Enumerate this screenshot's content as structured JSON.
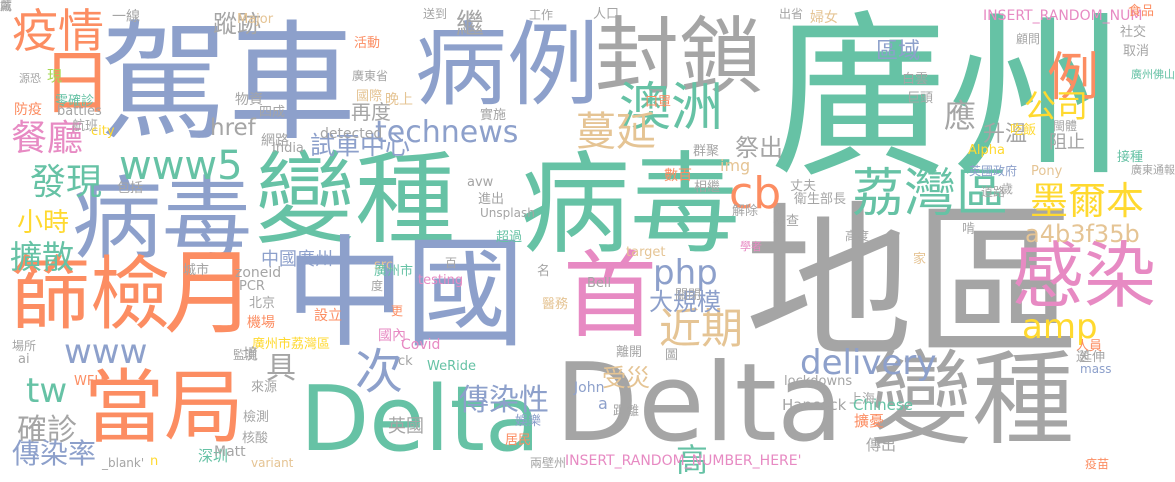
{
  "background": "#ffffff",
  "palette": {
    "gray": "#a5a5a5",
    "green": "#66c2a5",
    "orange": "#fc8d62",
    "blue": "#8da0cb",
    "pink": "#e78ac3",
    "lime": "#a6d854",
    "yellow": "#ffd92f",
    "tan": "#e5c494"
  },
  "words": [
    {
      "text": "廣州",
      "color": "green"
    },
    {
      "text": "駕車",
      "color": "blue"
    },
    {
      "text": "地區",
      "color": "gray"
    },
    {
      "text": "病毒",
      "color": "green"
    },
    {
      "text": "變種",
      "color": "green"
    },
    {
      "text": "變種",
      "color": "gray"
    },
    {
      "text": "Delta",
      "color": "gray"
    },
    {
      "text": "Delta",
      "color": "green"
    },
    {
      "text": "中國",
      "color": "blue"
    },
    {
      "text": "病例",
      "color": "blue"
    },
    {
      "text": "封鎖",
      "color": "gray"
    },
    {
      "text": "首",
      "color": "pink"
    },
    {
      "text": "病毒",
      "color": "blue"
    },
    {
      "text": "篩檢",
      "color": "orange"
    },
    {
      "text": "月",
      "color": "orange"
    },
    {
      "text": "當局",
      "color": "orange"
    },
    {
      "text": "感染",
      "color": "pink"
    },
    {
      "text": "日",
      "color": "orange"
    },
    {
      "text": "疫情",
      "color": "orange"
    },
    {
      "text": "荔灣區",
      "color": "green"
    },
    {
      "text": "墨爾本",
      "color": "yellow"
    },
    {
      "text": "澳洲",
      "color": "green"
    },
    {
      "text": "蔓延",
      "color": "tan"
    },
    {
      "text": "technews",
      "color": "blue"
    },
    {
      "text": "www5",
      "color": "green"
    },
    {
      "text": "www",
      "color": "blue"
    },
    {
      "text": "delivery",
      "color": "blue"
    },
    {
      "text": "cb",
      "color": "orange"
    },
    {
      "text": "php",
      "color": "blue"
    },
    {
      "text": "amp",
      "color": "yellow"
    },
    {
      "text": "tw",
      "color": "green"
    },
    {
      "text": "近期",
      "color": "tan"
    },
    {
      "text": "試車中心",
      "color": "blue"
    },
    {
      "text": "餐廳",
      "color": "pink"
    },
    {
      "text": "發現",
      "color": "green"
    },
    {
      "text": "小時",
      "color": "yellow"
    },
    {
      "text": "確診",
      "color": "gray"
    },
    {
      "text": "傳染率",
      "color": "blue"
    },
    {
      "text": "傳染性",
      "color": "blue"
    },
    {
      "text": "次",
      "color": "blue"
    },
    {
      "text": "具",
      "color": "gray"
    },
    {
      "text": "應",
      "color": "gray"
    },
    {
      "text": "例",
      "color": "orange"
    },
    {
      "text": "公司",
      "color": "yellow"
    },
    {
      "text": "a4b3f35b",
      "color": "tan"
    },
    {
      "text": "大規模",
      "color": "blue"
    },
    {
      "text": "受災",
      "color": "tan"
    },
    {
      "text": "高",
      "color": "green"
    },
    {
      "text": "祭出",
      "color": "gray"
    },
    {
      "text": "蹤跡",
      "color": "gray"
    },
    {
      "text": "href",
      "color": "gray"
    },
    {
      "text": "區域",
      "color": "blue"
    },
    {
      "text": "擴散",
      "color": "green"
    },
    {
      "text": "再度",
      "color": "gray"
    },
    {
      "text": "阻止",
      "color": "gray"
    },
    {
      "text": "升溫",
      "color": "gray"
    },
    {
      "text": "中國廣州",
      "color": "blue"
    },
    {
      "text": "INSERT_RANDOM_NUMBER_HERE'",
      "color": "pink"
    },
    {
      "text": "INSERT_RANDOM_NUM",
      "color": "pink"
    },
    {
      "text": "一線",
      "color": "gray"
    },
    {
      "text": "Major",
      "color": "tan"
    },
    {
      "text": "送到",
      "color": "gray"
    },
    {
      "text": "繼",
      "color": "gray"
    },
    {
      "text": "工作",
      "color": "gray"
    },
    {
      "text": "人口",
      "color": "gray"
    },
    {
      "text": "出省",
      "color": "gray"
    },
    {
      "text": "婦女",
      "color": "tan"
    },
    {
      "text": "食品",
      "color": "orange"
    },
    {
      "text": "社交",
      "color": "gray"
    },
    {
      "text": "取消",
      "color": "gray"
    },
    {
      "text": "顧問",
      "color": "gray"
    },
    {
      "text": "廣州佛山",
      "color": "green"
    },
    {
      "text": "活動",
      "color": "orange"
    },
    {
      "text": "廣東省",
      "color": "gray"
    },
    {
      "text": "國際",
      "color": "tan"
    },
    {
      "text": "晚上",
      "color": "tan"
    },
    {
      "text": "白雲",
      "color": "gray"
    },
    {
      "text": "巨頭",
      "color": "gray"
    },
    {
      "text": "數百",
      "color": "orange"
    },
    {
      "text": "img",
      "color": "tan"
    },
    {
      "text": "群聚",
      "color": "gray"
    },
    {
      "text": "相繼",
      "color": "gray"
    },
    {
      "text": "口罩",
      "color": "orange"
    },
    {
      "text": "吃飯",
      "color": "yellow"
    },
    {
      "text": "閩體",
      "color": "gray"
    },
    {
      "text": "接種",
      "color": "green"
    },
    {
      "text": "廣東通報",
      "color": "gray"
    },
    {
      "text": "英國政府",
      "color": "blue"
    },
    {
      "text": "Pony",
      "color": "tan"
    },
    {
      "text": "Alpha",
      "color": "yellow"
    },
    {
      "text": "道路",
      "color": "gray"
    },
    {
      "text": "丈夫",
      "color": "gray"
    },
    {
      "text": "衛生部長",
      "color": "gray"
    },
    {
      "text": "歲",
      "color": "gray"
    },
    {
      "text": "解除",
      "color": "gray"
    },
    {
      "text": "檢查",
      "color": "gray"
    },
    {
      "text": "學者",
      "color": "pink"
    },
    {
      "text": "高度",
      "color": "gray"
    },
    {
      "text": "Unsplash",
      "color": "gray"
    },
    {
      "text": "進出",
      "color": "gray"
    },
    {
      "text": "avw",
      "color": "gray"
    },
    {
      "text": "實施",
      "color": "gray"
    },
    {
      "text": "detected",
      "color": "gray"
    },
    {
      "text": "網路",
      "color": "gray"
    },
    {
      "text": "物資",
      "color": "gray"
    },
    {
      "text": "四成",
      "color": "gray"
    },
    {
      "text": "現",
      "color": "lime"
    },
    {
      "text": "零確診",
      "color": "green"
    },
    {
      "text": "防疫",
      "color": "orange"
    },
    {
      "text": "源恐",
      "color": "gray"
    },
    {
      "text": "battles",
      "color": "gray"
    },
    {
      "text": "航班",
      "color": "gray"
    },
    {
      "text": "city",
      "color": "yellow"
    },
    {
      "text": "包括",
      "color": "gray"
    },
    {
      "text": "India",
      "color": "gray"
    },
    {
      "text": "zoneid",
      "color": "gray"
    },
    {
      "text": "target",
      "color": "tan"
    },
    {
      "text": "Bell",
      "color": "gray"
    },
    {
      "text": "testing",
      "color": "pink"
    },
    {
      "text": "PCR",
      "color": "gray"
    },
    {
      "text": "src",
      "color": "tan"
    },
    {
      "text": "北京",
      "color": "gray"
    },
    {
      "text": "設立",
      "color": "orange"
    },
    {
      "text": "更",
      "color": "orange"
    },
    {
      "text": "機場",
      "color": "orange"
    },
    {
      "text": "廣州市荔灣區",
      "color": "yellow"
    },
    {
      "text": "國內",
      "color": "pink"
    },
    {
      "text": "Covid",
      "color": "pink"
    },
    {
      "text": "ck",
      "color": "gray"
    },
    {
      "text": "WeRide",
      "color": "green"
    },
    {
      "text": "John",
      "color": "blue"
    },
    {
      "text": "a",
      "color": "blue"
    },
    {
      "text": "距離",
      "color": "gray"
    },
    {
      "text": "lockdowns",
      "color": "gray"
    },
    {
      "text": "Hancock",
      "color": "gray"
    },
    {
      "text": "上海",
      "color": "gray"
    },
    {
      "text": "Chinese",
      "color": "green"
    },
    {
      "text": "擴憂",
      "color": "orange"
    },
    {
      "text": "傳出",
      "color": "gray"
    },
    {
      "text": "疫苗",
      "color": "orange"
    },
    {
      "text": "mass",
      "color": "blue"
    },
    {
      "text": "延伸",
      "color": "gray"
    },
    {
      "text": "人員",
      "color": "orange"
    },
    {
      "text": "送",
      "color": "gray"
    },
    {
      "text": "關閉",
      "color": "gray"
    },
    {
      "text": "醫務",
      "color": "tan"
    },
    {
      "text": "名",
      "color": "gray"
    },
    {
      "text": "圖",
      "color": "gray"
    },
    {
      "text": "離開",
      "color": "gray"
    },
    {
      "text": "場所",
      "color": "gray"
    },
    {
      "text": "ai",
      "color": "gray"
    },
    {
      "text": "WFH",
      "color": "orange"
    },
    {
      "text": "監測",
      "color": "gray"
    },
    {
      "text": "來源",
      "color": "gray"
    },
    {
      "text": "檢測",
      "color": "gray"
    },
    {
      "text": "核酸",
      "color": "gray"
    },
    {
      "text": "娛樂",
      "color": "blue"
    },
    {
      "text": "居民",
      "color": "orange"
    },
    {
      "text": "英國",
      "color": "gray"
    },
    {
      "text": "深圳",
      "color": "green"
    },
    {
      "text": "n",
      "color": "yellow"
    },
    {
      "text": "_blank'",
      "color": "gray"
    },
    {
      "text": "variant",
      "color": "tan"
    },
    {
      "text": "Matt",
      "color": "gray"
    },
    {
      "text": "兩壁州",
      "color": "gray"
    },
    {
      "text": "境",
      "color": "gray"
    },
    {
      "text": "城市",
      "color": "gray"
    },
    {
      "text": "廣州市",
      "color": "green"
    },
    {
      "text": "度",
      "color": "gray"
    },
    {
      "text": "百",
      "color": "gray"
    },
    {
      "text": "超過",
      "color": "green"
    },
    {
      "text": "家",
      "color": "tan"
    },
    {
      "text": "啃",
      "color": "gray"
    },
    {
      "text": "厲",
      "color": "gray"
    },
    {
      "text": "戴",
      "color": "gray"
    }
  ]
}
